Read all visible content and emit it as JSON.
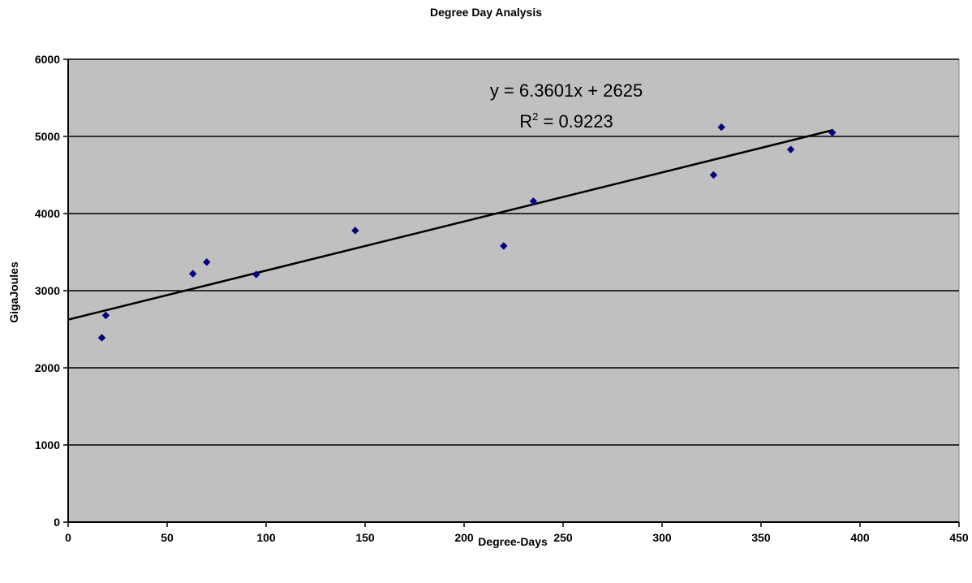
{
  "chart_data": {
    "type": "scatter",
    "title": "Degree Day Analysis",
    "xlabel": "Degree-Days",
    "ylabel": "GigaJoules",
    "xlim": [
      0,
      450
    ],
    "ylim": [
      0,
      6000
    ],
    "x_ticks": [
      0,
      50,
      100,
      150,
      200,
      250,
      300,
      350,
      400,
      450
    ],
    "y_ticks": [
      0,
      1000,
      2000,
      3000,
      4000,
      5000,
      6000
    ],
    "grid": "horizontal",
    "legend": "none",
    "series": [
      {
        "marker_color": "#000080",
        "points": [
          {
            "x": 17,
            "y": 2390
          },
          {
            "x": 19,
            "y": 2680
          },
          {
            "x": 63,
            "y": 3220
          },
          {
            "x": 70,
            "y": 3370
          },
          {
            "x": 95,
            "y": 3210
          },
          {
            "x": 145,
            "y": 3780
          },
          {
            "x": 220,
            "y": 3580
          },
          {
            "x": 235,
            "y": 4160
          },
          {
            "x": 326,
            "y": 4500
          },
          {
            "x": 330,
            "y": 5120
          },
          {
            "x": 365,
            "y": 4830
          },
          {
            "x": 386,
            "y": 5050
          }
        ]
      }
    ],
    "trendline": {
      "slope": 6.3601,
      "intercept": 2625,
      "x_range": [
        0,
        386
      ],
      "equation": "y = 6.3601x + 2625",
      "r2_label": "R",
      "r2_sup": "2",
      "r2_value": " = 0.9223"
    },
    "colors": {
      "plot_background": "#c0c0c0",
      "gridline": "#000000",
      "marker": "#000080",
      "trendline": "#000000"
    }
  }
}
